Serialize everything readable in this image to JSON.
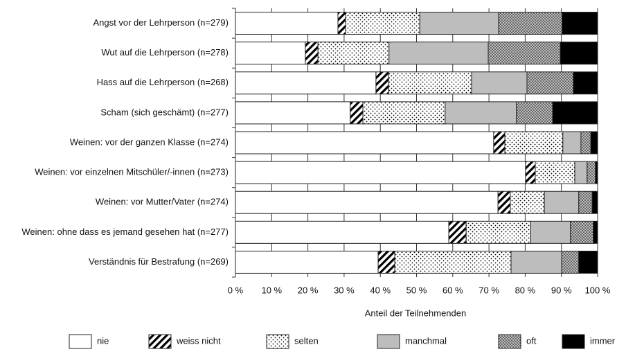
{
  "chart_data": {
    "type": "stacked-bar-horizontal",
    "x_label": "Anteil der Teilnehmenden",
    "categories": [
      "Angst vor der Lehrperson (n=279)",
      "Wut auf die Lehrperson (n=278)",
      "Hass auf die Lehrperson (n=268)",
      "Scham (sich geschämt) (n=277)",
      "Weinen: vor der ganzen Klasse (n=274)",
      "Weinen: vor einzelnen Mitschüler/-innen (n=273)",
      "Weinen: vor Mutter/Vater (n=274)",
      "Weinen: ohne dass es jemand gesehen hat (n=277)",
      "Verständnis für Bestrafung (n=269)"
    ],
    "series": [
      {
        "name": "nie",
        "color": "#ffffff",
        "pattern": "none",
        "values": [
          28.3,
          19.3,
          38.8,
          31.7,
          71.3,
          80.1,
          72.5,
          58.9,
          39.4
        ]
      },
      {
        "name": "weiss nicht",
        "color": "#000000",
        "pattern": "hatch",
        "values": [
          2.1,
          3.5,
          3.5,
          3.5,
          3.1,
          2.7,
          3.4,
          4.8,
          4.6
        ]
      },
      {
        "name": "selten",
        "color": "#000000",
        "pattern": "sparse-dots",
        "values": [
          20.5,
          19.6,
          22.9,
          22.7,
          16.0,
          10.9,
          9.4,
          17.8,
          32.1
        ]
      },
      {
        "name": "manchmal",
        "color": "#bdbdbd",
        "pattern": "none",
        "values": [
          21.8,
          27.4,
          15.3,
          19.7,
          5.0,
          3.4,
          9.5,
          11.0,
          14.0
        ]
      },
      {
        "name": "oft",
        "color": "#bdbdbd",
        "pattern": "dense-dots",
        "values": [
          17.5,
          19.9,
          12.8,
          10.0,
          2.7,
          2.3,
          3.7,
          6.3,
          4.7
        ]
      },
      {
        "name": "immer",
        "color": "#000000",
        "pattern": "none",
        "values": [
          9.8,
          10.3,
          6.7,
          12.4,
          1.9,
          0.6,
          1.5,
          1.2,
          5.2
        ]
      }
    ],
    "xlim": [
      0,
      100
    ],
    "xticks": [
      {
        "value": 0,
        "label": "0 %"
      },
      {
        "value": 10,
        "label": "10 %"
      },
      {
        "value": 20,
        "label": "20 %"
      },
      {
        "value": 30,
        "label": "30 %"
      },
      {
        "value": 40,
        "label": "40 %"
      },
      {
        "value": 50,
        "label": "50 %"
      },
      {
        "value": 60,
        "label": "60 %"
      },
      {
        "value": 70,
        "label": "70 %"
      },
      {
        "value": 80,
        "label": "80 %"
      },
      {
        "value": 90,
        "label": "90 %"
      },
      {
        "value": 100,
        "label": "100 %"
      }
    ],
    "grid": true,
    "legend": "bottom"
  }
}
